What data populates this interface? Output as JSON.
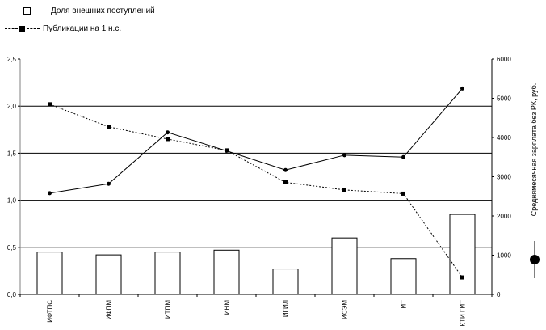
{
  "legend": {
    "bars_label": "Доля внешних поступлений",
    "dashed_label": "Публикации на 1 н.с."
  },
  "right_axis_label": "Среднямесячная зарплата без РК, руб.",
  "chart_data": {
    "type": "bar",
    "categories": [
      "ИФТПС",
      "ИФПМ",
      "ИТПМ",
      "ИНМ",
      "ИГИЛ",
      "ИСЭМ",
      "ИТ",
      "КТИ ГИТ"
    ],
    "left_axis": {
      "ylim": [
        0,
        2.5
      ],
      "ticks": [
        "0,0",
        "0,5",
        "1,0",
        "1,5",
        "2,0",
        "2,5"
      ]
    },
    "right_axis": {
      "ylim": [
        0,
        6000
      ],
      "ticks": [
        "0",
        "1000",
        "2000",
        "3000",
        "4000",
        "5000",
        "6000"
      ]
    },
    "gridlines": [
      0.5,
      1.0,
      1.5,
      2.0
    ],
    "series": [
      {
        "name": "Доля внешних поступлений",
        "kind": "bar",
        "axis": "left",
        "values": [
          0.45,
          0.42,
          0.45,
          0.47,
          0.27,
          0.6,
          0.38,
          0.85
        ]
      },
      {
        "name": "Публикации на 1 н.с.",
        "kind": "dashed-line",
        "axis": "left",
        "values": [
          2.02,
          1.78,
          1.65,
          1.53,
          1.19,
          1.11,
          1.07,
          0.18
        ]
      },
      {
        "name": "Среднямесячная зарплата без РК, руб.",
        "kind": "solid-line",
        "axis": "right",
        "values": [
          2580,
          2820,
          4130,
          3660,
          3170,
          3550,
          3500,
          5250
        ]
      }
    ]
  }
}
